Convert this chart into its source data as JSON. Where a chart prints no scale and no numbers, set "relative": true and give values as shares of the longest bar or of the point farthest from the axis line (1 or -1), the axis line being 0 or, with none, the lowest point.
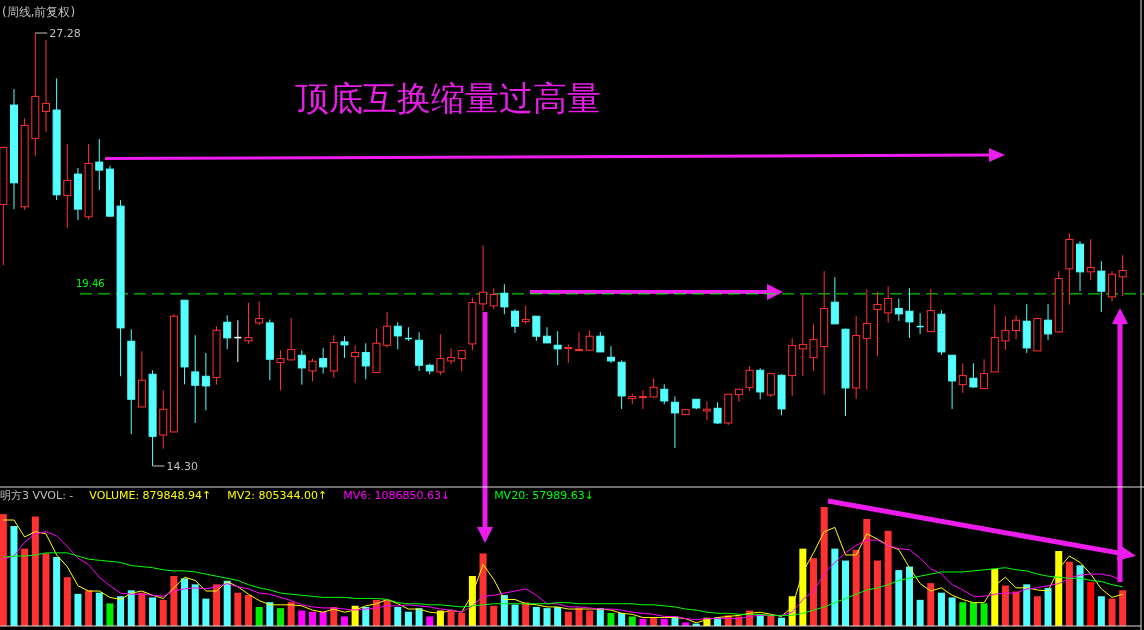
{
  "chart_data": [
    {
      "type": "candlestick",
      "title": "(周线,前复权)",
      "categories": [
        null,
        null,
        null,
        null,
        null,
        null,
        null,
        null,
        null,
        null,
        null,
        null,
        null,
        null,
        null,
        null,
        null,
        null,
        null,
        null,
        null,
        null,
        null,
        null,
        null,
        null,
        null,
        null,
        null,
        null,
        null,
        null,
        null,
        null,
        null,
        null,
        null,
        null,
        null,
        null,
        null,
        null,
        null,
        null,
        null,
        null,
        null,
        null,
        null,
        null,
        null,
        null,
        null,
        null,
        null,
        null,
        null,
        null,
        null,
        null,
        null,
        null,
        null,
        null,
        null,
        null,
        null,
        null,
        null,
        null,
        null,
        null,
        null,
        null,
        null,
        null,
        null,
        null,
        null,
        null,
        null,
        null,
        null,
        null,
        null,
        null,
        null,
        null,
        null,
        null,
        null,
        null,
        null,
        null,
        null,
        null,
        null,
        null,
        null,
        null,
        null,
        null,
        null,
        null,
        null,
        null
      ],
      "ohlc": [
        [
          22.14,
          23.86,
          20.32,
          23.85
        ],
        [
          25.12,
          25.6,
          22.0,
          22.79
        ],
        [
          22.07,
          24.72,
          21.97,
          24.51
        ],
        [
          24.12,
          27.28,
          23.6,
          25.38
        ],
        [
          24.93,
          27.07,
          24.32,
          25.17
        ],
        [
          24.97,
          25.92,
          22.27,
          22.43
        ],
        [
          22.41,
          23.95,
          21.44,
          22.86
        ],
        [
          23.05,
          23.23,
          21.67,
          22.0
        ],
        [
          21.77,
          23.95,
          21.69,
          23.37
        ],
        [
          23.41,
          24.1,
          22.57,
          23.17
        ],
        [
          23.2,
          23.3,
          21.77,
          21.79
        ],
        [
          22.09,
          22.27,
          16.99,
          18.44
        ],
        [
          18.04,
          18.4,
          15.25,
          16.3
        ],
        [
          16.07,
          17.74,
          16.07,
          16.87
        ],
        [
          17.05,
          17.17,
          14.3,
          15.19
        ],
        [
          15.23,
          16.57,
          14.82,
          16.0
        ],
        [
          15.32,
          18.85,
          15.32,
          18.79
        ],
        [
          19.27,
          19.27,
          16.75,
          17.27
        ],
        [
          17.12,
          18.22,
          15.59,
          16.72
        ],
        [
          16.99,
          17.69,
          15.97,
          16.7
        ],
        [
          16.95,
          18.49,
          16.74,
          18.37
        ],
        [
          18.61,
          18.82,
          17.8,
          18.14
        ],
        [
          18.15,
          18.67,
          17.42,
          18.15
        ],
        [
          18.05,
          19.19,
          17.97,
          18.15
        ],
        [
          18.59,
          19.24,
          18.52,
          18.72
        ],
        [
          18.59,
          18.69,
          16.87,
          17.5
        ],
        [
          17.4,
          17.77,
          16.57,
          17.52
        ],
        [
          17.48,
          18.74,
          17.48,
          17.79
        ],
        [
          17.62,
          17.77,
          16.74,
          17.24
        ],
        [
          17.15,
          17.52,
          16.84,
          17.44
        ],
        [
          17.52,
          17.84,
          17.07,
          17.27
        ],
        [
          17.15,
          18.22,
          16.94,
          18.0
        ],
        [
          18.02,
          18.19,
          17.54,
          17.93
        ],
        [
          17.58,
          17.92,
          16.79,
          17.7
        ],
        [
          17.7,
          17.98,
          16.9,
          17.3
        ],
        [
          17.1,
          18.42,
          17.1,
          17.98
        ],
        [
          17.92,
          18.91,
          17.85,
          18.49
        ],
        [
          18.49,
          18.61,
          17.8,
          18.2
        ],
        [
          18.12,
          18.46,
          18.05,
          18.12
        ],
        [
          18.07,
          18.31,
          17.15,
          17.32
        ],
        [
          17.32,
          17.37,
          17.05,
          17.15
        ],
        [
          17.12,
          18.25,
          17.02,
          17.52
        ],
        [
          17.45,
          17.83,
          17.35,
          17.55
        ],
        [
          17.52,
          17.76,
          17.14,
          17.76
        ],
        [
          17.96,
          19.35,
          17.77,
          19.2
        ],
        [
          19.16,
          20.92,
          18.95,
          19.51
        ],
        [
          19.1,
          19.63,
          19.0,
          19.44
        ],
        [
          19.48,
          19.75,
          18.85,
          19.07
        ],
        [
          18.94,
          19.0,
          18.29,
          18.49
        ],
        [
          18.63,
          19.11,
          18.55,
          18.69
        ],
        [
          18.79,
          18.79,
          18.05,
          18.19
        ],
        [
          18.19,
          18.46,
          17.99,
          17.99
        ],
        [
          17.92,
          18.34,
          17.32,
          17.81
        ],
        [
          17.82,
          17.95,
          17.39,
          17.85
        ],
        [
          17.76,
          18.31,
          17.76,
          17.79
        ],
        [
          17.77,
          18.37,
          17.75,
          18.19
        ],
        [
          18.19,
          18.31,
          17.72,
          17.72
        ],
        [
          17.56,
          17.89,
          17.39,
          17.45
        ],
        [
          17.41,
          17.47,
          16.01,
          16.4
        ],
        [
          16.32,
          16.47,
          16.15,
          16.38
        ],
        [
          16.35,
          16.57,
          16.01,
          16.38
        ],
        [
          16.37,
          16.93,
          16.35,
          16.66
        ],
        [
          16.6,
          16.75,
          16.15,
          16.25
        ],
        [
          16.21,
          16.39,
          14.84,
          15.89
        ],
        [
          15.84,
          16.01,
          15.82,
          15.99
        ],
        [
          16.3,
          16.3,
          16.0,
          16.04
        ],
        [
          15.95,
          16.24,
          15.67,
          16.0
        ],
        [
          16.03,
          16.21,
          15.56,
          15.59
        ],
        [
          15.59,
          16.45,
          15.53,
          16.45
        ],
        [
          16.44,
          16.62,
          16.22,
          16.6
        ],
        [
          16.65,
          17.29,
          16.55,
          17.17
        ],
        [
          17.17,
          17.23,
          16.3,
          16.52
        ],
        [
          16.43,
          17.07,
          16.37,
          17.07
        ],
        [
          17.02,
          17.05,
          15.82,
          16.01
        ],
        [
          17.01,
          18.13,
          16.4,
          17.91
        ],
        [
          17.81,
          19.45,
          17.0,
          17.94
        ],
        [
          17.55,
          18.55,
          17.15,
          18.09
        ],
        [
          17.88,
          20.14,
          16.44,
          19.02
        ],
        [
          19.21,
          19.96,
          18.56,
          18.56
        ],
        [
          18.4,
          18.42,
          15.8,
          16.64
        ],
        [
          16.64,
          18.79,
          16.31,
          18.21
        ],
        [
          18.12,
          19.6,
          16.59,
          18.57
        ],
        [
          18.99,
          19.52,
          17.6,
          19.14
        ],
        [
          18.89,
          19.69,
          18.59,
          19.32
        ],
        [
          19.02,
          19.32,
          18.65,
          18.86
        ],
        [
          18.94,
          19.63,
          18.14,
          18.62
        ],
        [
          18.48,
          18.88,
          18.26,
          18.48
        ],
        [
          18.33,
          19.6,
          18.33,
          18.96
        ],
        [
          18.85,
          18.97,
          17.63,
          17.72
        ],
        [
          17.62,
          17.62,
          16.01,
          16.85
        ],
        [
          16.74,
          17.38,
          16.49,
          17.01
        ],
        [
          16.93,
          17.38,
          16.64,
          16.67
        ],
        [
          16.62,
          17.5,
          16.62,
          17.07
        ],
        [
          17.12,
          19.12,
          17.12,
          18.15
        ],
        [
          18.05,
          18.79,
          17.78,
          18.36
        ],
        [
          18.36,
          18.82,
          18.1,
          18.67
        ],
        [
          18.64,
          19.15,
          17.69,
          17.84
        ],
        [
          17.75,
          18.75,
          17.75,
          18.72
        ],
        [
          18.67,
          19.15,
          18.08,
          18.26
        ],
        [
          18.32,
          20.14,
          18.29,
          19.92
        ],
        [
          20.21,
          21.27,
          19.14,
          21.09
        ],
        [
          20.95,
          21.04,
          19.54,
          20.12
        ],
        [
          20.12,
          21.1,
          19.87,
          20.25
        ],
        [
          20.14,
          20.44,
          18.92,
          19.54
        ],
        [
          19.37,
          20.14,
          19.22,
          20.05
        ],
        [
          19.97,
          20.62,
          19.4,
          20.16
        ]
      ],
      "colors": [
        "#ff3232",
        "#54ffff",
        "#ff3232",
        "#ff3232",
        "#ff3232",
        "#54ffff",
        "#ff3232",
        "#54ffff",
        "#ff3232",
        "#54ffff",
        "#54ffff",
        "#54ffff",
        "#54ffff",
        "#ff3232",
        "#54ffff",
        "#ff3232",
        "#ff3232",
        "#54ffff",
        "#54ffff",
        "#54ffff",
        "#ff3232",
        "#54ffff",
        "#ffffff",
        "#ff3232",
        "#ff3232",
        "#54ffff",
        "#ff3232",
        "#ff3232",
        "#54ffff",
        "#ff3232",
        "#54ffff",
        "#ff3232",
        "#54ffff",
        "#ff3232",
        "#54ffff",
        "#ff3232",
        "#ff3232",
        "#54ffff",
        "#54ffff",
        "#54ffff",
        "#54ffff",
        "#ff3232",
        "#ff3232",
        "#ff3232",
        "#ff3232",
        "#ff3232",
        "#ff3232",
        "#54ffff",
        "#54ffff",
        "#ff3232",
        "#54ffff",
        "#54ffff",
        "#54ffff",
        "#ff3232",
        "#ff3232",
        "#ff3232",
        "#54ffff",
        "#54ffff",
        "#54ffff",
        "#ff3232",
        "#ff3232",
        "#ff3232",
        "#54ffff",
        "#54ffff",
        "#ff3232",
        "#54ffff",
        "#ff3232",
        "#54ffff",
        "#ff3232",
        "#ff3232",
        "#ff3232",
        "#54ffff",
        "#ff3232",
        "#54ffff",
        "#ff3232",
        "#ff3232",
        "#ff3232",
        "#ff3232",
        "#54ffff",
        "#54ffff",
        "#ff3232",
        "#ff3232",
        "#ff3232",
        "#ff3232",
        "#54ffff",
        "#54ffff",
        "#54ffff",
        "#ff3232",
        "#54ffff",
        "#54ffff",
        "#ff3232",
        "#54ffff",
        "#ff3232",
        "#ff3232",
        "#ff3232",
        "#ff3232",
        "#54ffff",
        "#ff3232",
        "#54ffff",
        "#ff3232",
        "#ff3232",
        "#54ffff",
        "#ff3232",
        "#54ffff",
        "#ff3232",
        "#ff3232"
      ],
      "ref_lines": [
        {
          "axis": "y",
          "value": 19.46,
          "label": "19.46",
          "color": "#00ff00",
          "line_style": "dashed"
        }
      ],
      "annotations": [
        "27.28",
        "14.30",
        "顶底互换缩量过高量"
      ]
    },
    {
      "type": "bar",
      "relative": true,
      "categories": [
        null,
        null,
        null,
        null,
        null,
        null,
        null,
        null,
        null,
        null,
        null,
        null,
        null,
        null,
        null,
        null,
        null,
        null,
        null,
        null,
        null,
        null,
        null,
        null,
        null,
        null,
        null,
        null,
        null,
        null,
        null,
        null,
        null,
        null,
        null,
        null,
        null,
        null,
        null,
        null,
        null,
        null,
        null,
        null,
        null,
        null,
        null,
        null,
        null,
        null,
        null,
        null,
        null,
        null,
        null,
        null,
        null,
        null,
        null,
        null,
        null,
        null,
        null,
        null,
        null,
        null,
        null,
        null,
        null,
        null,
        null,
        null,
        null,
        null,
        null,
        null,
        null,
        null,
        null,
        null,
        null,
        null,
        null,
        null,
        null,
        null,
        null,
        null,
        null,
        null,
        null,
        null,
        null,
        null,
        null,
        null,
        null,
        null,
        null,
        null,
        null,
        null,
        null,
        null,
        null,
        null
      ],
      "series": [
        {
          "type": "bar",
          "colors": [
            "#ff3232",
            "#54ffff",
            "#ff3232",
            "#ff3232",
            "#ff3232",
            "#54ffff",
            "#ff3232",
            "#54ffff",
            "#ff3232",
            "#54ffff",
            "#00ee00",
            "#54ffff",
            "#54ffff",
            "#ff3232",
            "#54ffff",
            "#ff3232",
            "#ff3232",
            "#54ffff",
            "#54ffff",
            "#54ffff",
            "#ff3232",
            "#54ffff",
            "#ff3232",
            "#ff3232",
            "#00ee00",
            "#54ffff",
            "#00ee00",
            "#ff3232",
            "#ff00ff",
            "#ff00ff",
            "#ff00ff",
            "#ff3232",
            "#ff00ff",
            "#ffff00",
            "#54ffff",
            "#ff3232",
            "#ff3232",
            "#54ffff",
            "#54ffff",
            "#54ffff",
            "#ff00ff",
            "#ffff00",
            "#ff3232",
            "#ff3232",
            "#ffff00",
            "#ff3232",
            "#ff3232",
            "#54ffff",
            "#54ffff",
            "#ff3232",
            "#54ffff",
            "#54ffff",
            "#54ffff",
            "#ff3232",
            "#ff3232",
            "#ff3232",
            "#54ffff",
            "#00ee00",
            "#54ffff",
            "#00ee00",
            "#ff00ff",
            "#ff3232",
            "#ff00ff",
            "#54ffff",
            "#ff00ff",
            "#54ffff",
            "#ffff00",
            "#54ffff",
            "#ff3232",
            "#ff3232",
            "#ff3232",
            "#54ffff",
            "#ff3232",
            "#54ffff",
            "#ffff00",
            "#ffff00",
            "#ff3232",
            "#ff3232",
            "#54ffff",
            "#54ffff",
            "#ff3232",
            "#ff3232",
            "#ff3232",
            "#ff3232",
            "#54ffff",
            "#54ffff",
            "#54ffff",
            "#ff3232",
            "#54ffff",
            "#54ffff",
            "#00ee00",
            "#00ee00",
            "#00ee00",
            "#ffff00",
            "#ff3232",
            "#ff3232",
            "#54ffff",
            "#ff3232",
            "#54ffff",
            "#ffff00",
            "#ff3232",
            "#54ffff",
            "#ff0000",
            "#54ffff",
            "#ff3232",
            "#ff3232"
          ],
          "values": [
            0.94,
            0.84,
            0.65,
            0.92,
            0.61,
            0.58,
            0.41,
            0.27,
            0.3,
            0.28,
            0.19,
            0.25,
            0.3,
            0.28,
            0.24,
            0.22,
            0.42,
            0.4,
            0.35,
            0.23,
            0.35,
            0.38,
            0.28,
            0.26,
            0.16,
            0.2,
            0.15,
            0.2,
            0.13,
            0.12,
            0.12,
            0.16,
            0.08,
            0.17,
            0.16,
            0.22,
            0.22,
            0.16,
            0.12,
            0.15,
            0.08,
            0.13,
            0.13,
            0.11,
            0.42,
            0.61,
            0.17,
            0.26,
            0.18,
            0.2,
            0.16,
            0.15,
            0.16,
            0.12,
            0.15,
            0.13,
            0.15,
            0.11,
            0.11,
            0.08,
            0.06,
            0.07,
            0.06,
            0.08,
            0.03,
            0.02,
            0.07,
            0.07,
            0.09,
            0.08,
            0.13,
            0.1,
            0.09,
            0.07,
            0.25,
            0.65,
            0.57,
            1,
            0.65,
            0.55,
            0.64,
            0.9,
            0.55,
            0.8,
            0.47,
            0.5,
            0.22,
            0.36,
            0.28,
            0.24,
            0.2,
            0.2,
            0.19,
            0.48,
            0.34,
            0.29,
            0.35,
            0.25,
            0.32,
            0.63,
            0.54,
            0.51,
            0.37,
            0.25,
            0.23,
            0.3
          ]
        }
      ],
      "annotations": [
        "明方3 VVOL: -",
        "VOLUME: 879848.94↑",
        "MV2: 805344.00↑",
        "MV6: 1086850.63↓",
        "MV20: 57989.63↓"
      ]
    },
    {
      "type": "line",
      "relative": true,
      "categories": [
        null,
        null,
        null,
        null,
        null,
        null,
        null,
        null,
        null,
        null,
        null,
        null,
        null,
        null,
        null,
        null,
        null,
        null,
        null,
        null,
        null,
        null,
        null,
        null,
        null,
        null,
        null,
        null,
        null,
        null,
        null,
        null,
        null,
        null,
        null,
        null,
        null,
        null,
        null,
        null,
        null,
        null,
        null,
        null,
        null,
        null,
        null,
        null,
        null,
        null,
        null,
        null,
        null,
        null,
        null,
        null,
        null,
        null,
        null,
        null,
        null,
        null,
        null,
        null,
        null,
        null,
        null,
        null,
        null,
        null,
        null,
        null,
        null,
        null,
        null,
        null,
        null,
        null,
        null,
        null,
        null,
        null,
        null,
        null,
        null,
        null,
        null,
        null,
        null,
        null,
        null,
        null,
        null,
        null,
        null,
        null,
        null,
        null,
        null,
        null,
        null,
        null,
        null,
        null,
        null,
        null
      ],
      "series": [
        {
          "color": "#ffff00",
          "values": [
            1,
            1,
            0.84,
            0.89,
            0.87,
            0.67,
            0.56,
            0.38,
            0.33,
            0.33,
            0.27,
            0.25,
            0.31,
            0.33,
            0.29,
            0.26,
            0.36,
            0.46,
            0.43,
            0.33,
            0.33,
            0.42,
            0.37,
            0.3,
            0.24,
            0.2,
            0.2,
            0.2,
            0.19,
            0.15,
            0.13,
            0.16,
            0.13,
            0.15,
            0.19,
            0.21,
            0.25,
            0.21,
            0.16,
            0.16,
            0.13,
            0.12,
            0.15,
            0.13,
            0.3,
            0.58,
            0.44,
            0.25,
            0.25,
            0.21,
            0.2,
            0.18,
            0.18,
            0.16,
            0.16,
            0.16,
            0.16,
            0.15,
            0.12,
            0.11,
            0.08,
            0.08,
            0.08,
            0.08,
            0.07,
            0.03,
            0.06,
            0.08,
            0.09,
            0.1,
            0.12,
            0.13,
            0.11,
            0.09,
            0.18,
            0.51,
            0.69,
            0.89,
            0.93,
            0.67,
            0.67,
            0.87,
            0.82,
            0.76,
            0.72,
            0.55,
            0.4,
            0.33,
            0.36,
            0.29,
            0.25,
            0.22,
            0.22,
            0.38,
            0.46,
            0.36,
            0.36,
            0.34,
            0.33,
            0.54,
            0.66,
            0.6,
            0.49,
            0.35,
            0.27,
            0.3
          ]
        },
        {
          "color": "#ff00ff",
          "values": [
            0.63,
            0.66,
            0.79,
            0.87,
            0.89,
            0.85,
            0.75,
            0.64,
            0.58,
            0.46,
            0.38,
            0.31,
            0.3,
            0.3,
            0.29,
            0.28,
            0.33,
            0.35,
            0.36,
            0.35,
            0.37,
            0.4,
            0.37,
            0.35,
            0.31,
            0.3,
            0.27,
            0.24,
            0.2,
            0.18,
            0.17,
            0.17,
            0.16,
            0.15,
            0.16,
            0.17,
            0.19,
            0.19,
            0.2,
            0.19,
            0.18,
            0.16,
            0.15,
            0.13,
            0.19,
            0.28,
            0.29,
            0.31,
            0.33,
            0.35,
            0.29,
            0.21,
            0.21,
            0.18,
            0.18,
            0.17,
            0.16,
            0.16,
            0.15,
            0.13,
            0.12,
            0.11,
            0.09,
            0.09,
            0.07,
            0.06,
            0.07,
            0.07,
            0.07,
            0.07,
            0.09,
            0.1,
            0.1,
            0.1,
            0.13,
            0.25,
            0.33,
            0.49,
            0.6,
            0.69,
            0.76,
            0.81,
            0.81,
            0.76,
            0.73,
            0.72,
            0.64,
            0.54,
            0.49,
            0.39,
            0.34,
            0.28,
            0.28,
            0.3,
            0.31,
            0.31,
            0.35,
            0.36,
            0.38,
            0.4,
            0.45,
            0.48,
            0.49,
            0.49,
            0.47,
            0.42
          ]
        },
        {
          "color": "#00ff00",
          "values": [
            0.65,
            0.66,
            0.66,
            0.67,
            0.69,
            0.69,
            0.69,
            0.66,
            0.63,
            0.62,
            0.61,
            0.6,
            0.57,
            0.56,
            0.55,
            0.53,
            0.52,
            0.52,
            0.51,
            0.49,
            0.47,
            0.45,
            0.43,
            0.39,
            0.36,
            0.34,
            0.31,
            0.3,
            0.29,
            0.28,
            0.27,
            0.27,
            0.27,
            0.26,
            0.26,
            0.26,
            0.25,
            0.22,
            0.21,
            0.21,
            0.2,
            0.2,
            0.19,
            0.18,
            0.19,
            0.2,
            0.21,
            0.21,
            0.21,
            0.21,
            0.21,
            0.21,
            0.22,
            0.22,
            0.21,
            0.21,
            0.21,
            0.21,
            0.21,
            0.21,
            0.2,
            0.2,
            0.19,
            0.18,
            0.16,
            0.15,
            0.13,
            0.12,
            0.12,
            0.11,
            0.11,
            0.11,
            0.1,
            0.1,
            0.1,
            0.12,
            0.15,
            0.18,
            0.22,
            0.26,
            0.3,
            0.34,
            0.36,
            0.39,
            0.43,
            0.45,
            0.47,
            0.49,
            0.51,
            0.51,
            0.51,
            0.52,
            0.53,
            0.54,
            0.55,
            0.53,
            0.52,
            0.49,
            0.47,
            0.46,
            0.45,
            0.45,
            0.43,
            0.42,
            0.39,
            0.37
          ]
        }
      ]
    }
  ]
}
